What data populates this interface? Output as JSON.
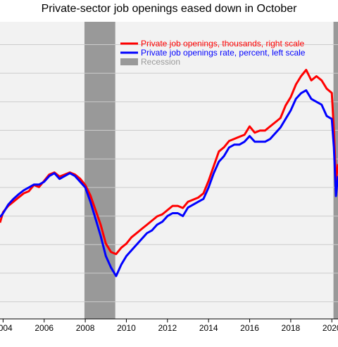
{
  "chart_data": {
    "type": "line",
    "title": "Private-sector job openings eased down in October",
    "xlabel": "",
    "ylabel": "",
    "x_tick_labels": [
      "2004",
      "2006",
      "2008",
      "2010",
      "2012",
      "2014",
      "2016",
      "2018",
      "2020"
    ],
    "x_range": [
      2003.85,
      2020.3
    ],
    "y_left": {
      "label": "",
      "range": [
        1.2,
        6.4
      ]
    },
    "y_right": {
      "label": "",
      "range": [
        1000,
        8100
      ]
    },
    "grid": true,
    "legend_position": "top-right",
    "recessions": [
      {
        "start": 2007.96,
        "end": 2009.46
      },
      {
        "start": 2020.08,
        "end": 2020.3
      }
    ],
    "legend": [
      {
        "label": "Private job openings, thousands, right scale",
        "color": "#ff0000",
        "kind": "line"
      },
      {
        "label": "Private job openings rate, percent, left scale",
        "color": "#0000ff",
        "kind": "line"
      },
      {
        "label": "Recession",
        "color": "#999999",
        "kind": "box"
      }
    ],
    "series": [
      {
        "name": "Private job openings, thousands, right scale",
        "axis": "right",
        "color": "#ff0000",
        "x": [
          2003.85,
          2004.0,
          2004.25,
          2004.5,
          2004.75,
          2005.0,
          2005.25,
          2005.5,
          2005.75,
          2006.0,
          2006.25,
          2006.5,
          2006.75,
          2007.0,
          2007.25,
          2007.5,
          2007.75,
          2008.0,
          2008.25,
          2008.5,
          2008.75,
          2009.0,
          2009.25,
          2009.5,
          2009.75,
          2010.0,
          2010.25,
          2010.5,
          2010.75,
          2011.0,
          2011.25,
          2011.5,
          2011.75,
          2012.0,
          2012.25,
          2012.5,
          2012.75,
          2013.0,
          2013.25,
          2013.5,
          2013.75,
          2014.0,
          2014.25,
          2014.5,
          2014.75,
          2015.0,
          2015.25,
          2015.5,
          2015.75,
          2016.0,
          2016.25,
          2016.5,
          2016.75,
          2017.0,
          2017.25,
          2017.5,
          2017.75,
          2018.0,
          2018.25,
          2018.5,
          2018.75,
          2019.0,
          2019.25,
          2019.5,
          2019.75,
          2020.0,
          2020.1,
          2020.2,
          2020.3
        ],
        "values": [
          3300,
          3550,
          3700,
          3800,
          3900,
          4000,
          4050,
          4200,
          4150,
          4300,
          4450,
          4500,
          4400,
          4450,
          4500,
          4450,
          4350,
          4200,
          3950,
          3600,
          3250,
          2800,
          2600,
          2550,
          2700,
          2800,
          2950,
          3050,
          3150,
          3250,
          3350,
          3450,
          3500,
          3600,
          3700,
          3700,
          3650,
          3800,
          3850,
          3900,
          4000,
          4300,
          4650,
          5000,
          5100,
          5250,
          5300,
          5350,
          5400,
          5600,
          5450,
          5500,
          5500,
          5600,
          5700,
          5800,
          6100,
          6300,
          6600,
          6800,
          6950,
          6700,
          6800,
          6700,
          6500,
          6400,
          5500,
          4300,
          4700
        ]
      },
      {
        "name": "Private job openings rate, percent, left scale",
        "axis": "left",
        "color": "#0000ff",
        "x": [
          2003.85,
          2004.0,
          2004.25,
          2004.5,
          2004.75,
          2005.0,
          2005.25,
          2005.5,
          2005.75,
          2006.0,
          2006.25,
          2006.5,
          2006.75,
          2007.0,
          2007.25,
          2007.5,
          2007.75,
          2008.0,
          2008.25,
          2008.5,
          2008.75,
          2009.0,
          2009.25,
          2009.5,
          2009.75,
          2010.0,
          2010.25,
          2010.5,
          2010.75,
          2011.0,
          2011.25,
          2011.5,
          2011.75,
          2012.0,
          2012.25,
          2012.5,
          2012.75,
          2013.0,
          2013.25,
          2013.5,
          2013.75,
          2014.0,
          2014.25,
          2014.5,
          2014.75,
          2015.0,
          2015.25,
          2015.5,
          2015.75,
          2016.0,
          2016.25,
          2016.5,
          2016.75,
          2017.0,
          2017.25,
          2017.5,
          2017.75,
          2018.0,
          2018.25,
          2018.5,
          2018.75,
          2019.0,
          2019.25,
          2019.5,
          2019.75,
          2020.0,
          2020.1,
          2020.2,
          2020.3
        ],
        "values": [
          2.98,
          3.05,
          3.2,
          3.3,
          3.38,
          3.45,
          3.5,
          3.55,
          3.55,
          3.6,
          3.7,
          3.75,
          3.65,
          3.7,
          3.75,
          3.7,
          3.6,
          3.5,
          3.25,
          2.95,
          2.65,
          2.3,
          2.1,
          1.95,
          2.15,
          2.3,
          2.4,
          2.5,
          2.6,
          2.7,
          2.75,
          2.85,
          2.9,
          3.0,
          3.05,
          3.05,
          3.0,
          3.15,
          3.2,
          3.25,
          3.3,
          3.5,
          3.75,
          3.95,
          4.05,
          4.2,
          4.25,
          4.25,
          4.3,
          4.4,
          4.3,
          4.3,
          4.3,
          4.35,
          4.45,
          4.55,
          4.7,
          4.85,
          5.05,
          5.15,
          5.2,
          5.05,
          5.0,
          4.95,
          4.75,
          4.7,
          4.2,
          3.35,
          3.7
        ]
      }
    ]
  }
}
